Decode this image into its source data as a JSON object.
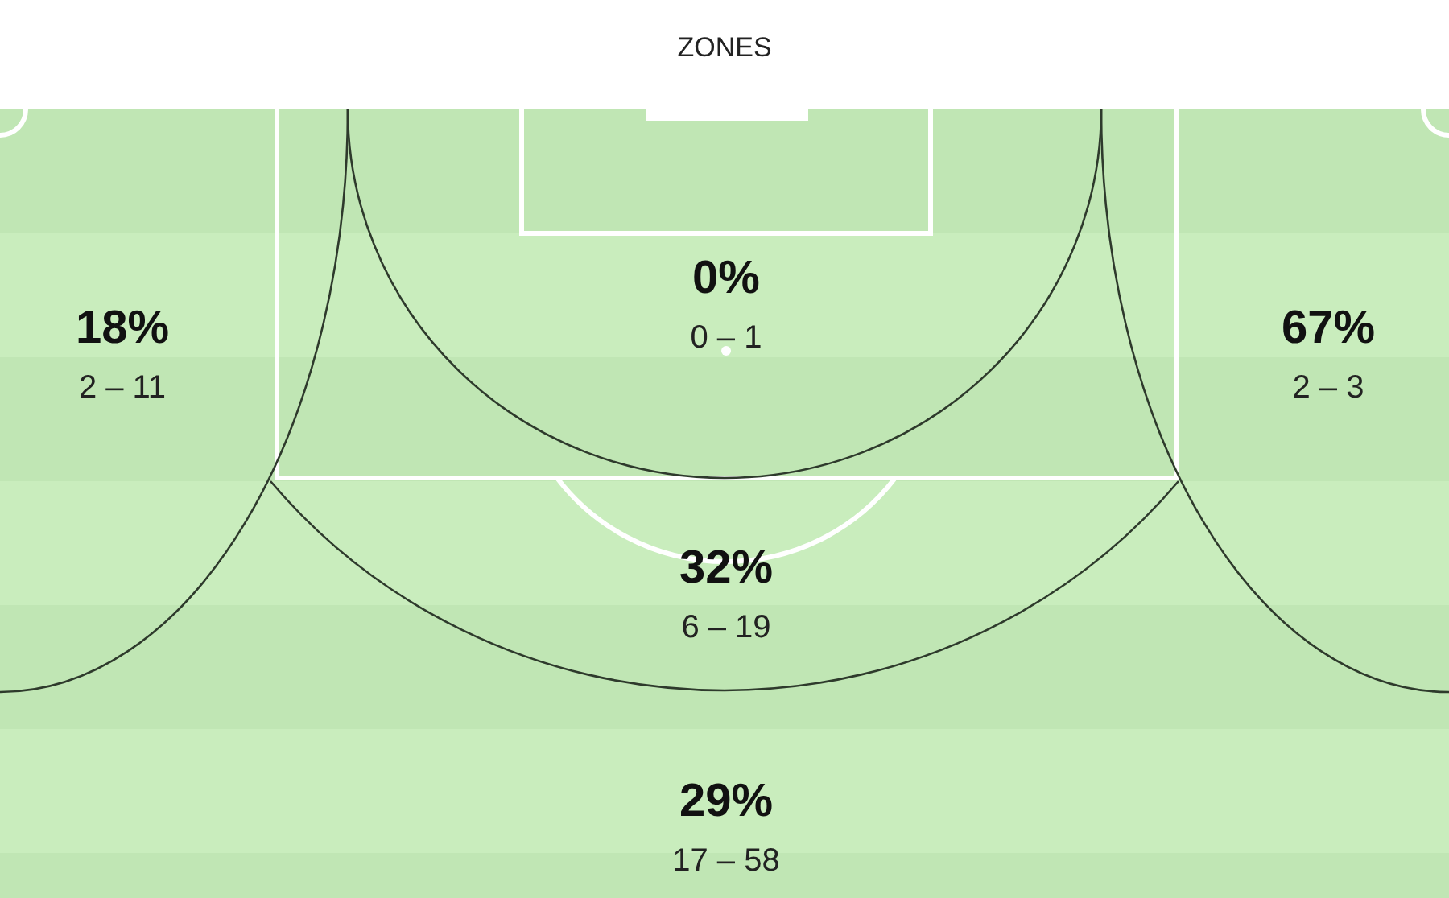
{
  "chart_data": {
    "type": "other",
    "title": "ZONES",
    "categories": [
      null,
      null,
      null,
      null,
      null
    ],
    "values": [
      18,
      0,
      67,
      32,
      29
    ],
    "value_labels": [
      "18%",
      "0%",
      "67%",
      "32%",
      "29%"
    ],
    "annotations": [
      "2 – 11",
      "0 – 1",
      "2 – 3",
      "6 – 19",
      "17 – 58"
    ]
  }
}
